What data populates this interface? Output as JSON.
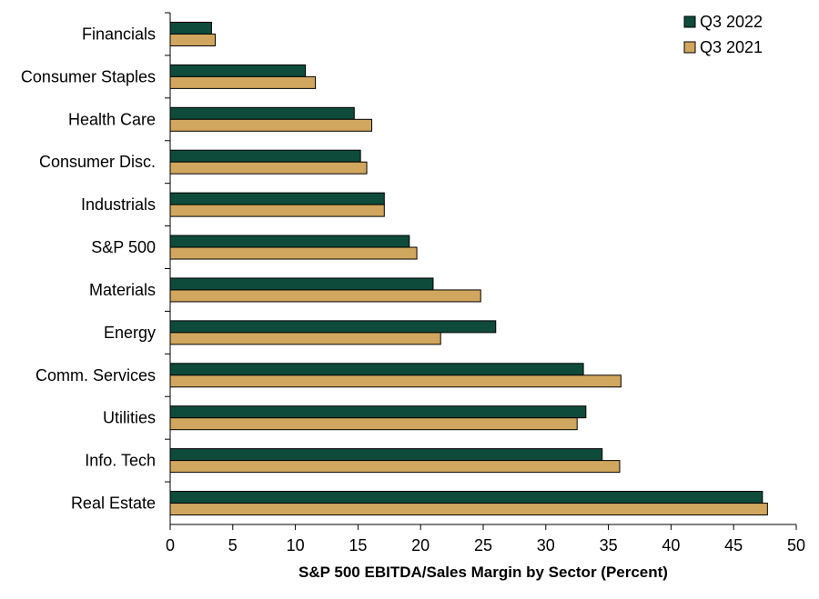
{
  "chart_data": {
    "type": "bar",
    "orientation": "horizontal",
    "title": "",
    "xlabel": "S&P 500 EBITDA/Sales Margin by Sector (Percent)",
    "ylabel": "",
    "xlim": [
      0,
      50
    ],
    "xticks": [
      0,
      5,
      10,
      15,
      20,
      25,
      30,
      35,
      40,
      45,
      50
    ],
    "grid": false,
    "legend_position": "top-right",
    "categories": [
      "Financials",
      "Consumer Staples",
      "Health Care",
      "Consumer Disc.",
      "Industrials",
      "S&P 500",
      "Materials",
      "Energy",
      "Comm. Services",
      "Utilities",
      "Info. Tech",
      "Real Estate"
    ],
    "series": [
      {
        "name": "Q3 2022",
        "color": "#0e4b3b",
        "values": [
          3.3,
          10.8,
          14.7,
          15.2,
          17.1,
          19.1,
          21.0,
          26.0,
          33.0,
          33.2,
          34.5,
          47.3
        ]
      },
      {
        "name": "Q3 2021",
        "color": "#d1a65e",
        "values": [
          3.6,
          11.6,
          16.1,
          15.7,
          17.1,
          19.7,
          24.8,
          21.6,
          36.0,
          32.5,
          35.9,
          47.7
        ]
      }
    ]
  }
}
